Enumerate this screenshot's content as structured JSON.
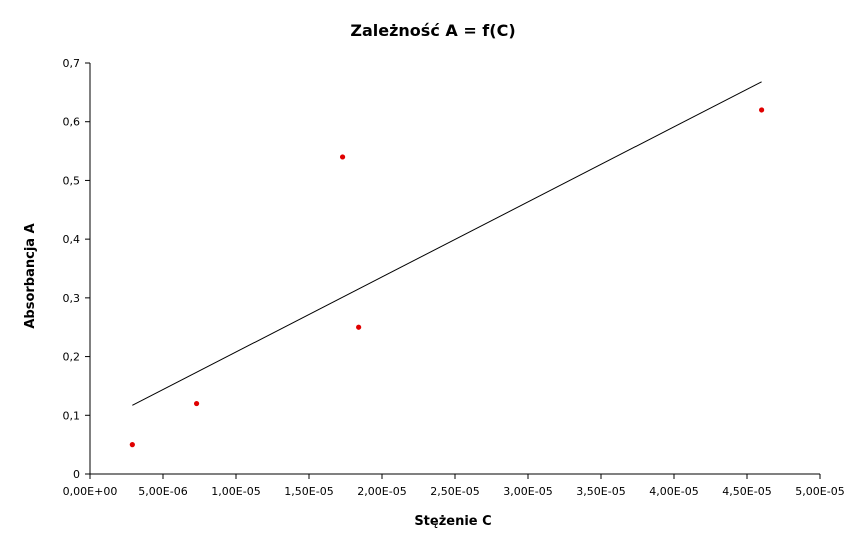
{
  "chart_data": {
    "type": "scatter",
    "title": "Zależność A = f(C)",
    "xlabel": "Stężenie C",
    "ylabel": "Absorbancja A",
    "xlim": [
      0,
      5e-05
    ],
    "ylim": [
      0,
      0.7
    ],
    "x_ticks": [
      0,
      5e-06,
      1e-05,
      1.5e-05,
      2e-05,
      2.5e-05,
      3e-05,
      3.5e-05,
      4e-05,
      4.5e-05,
      5e-05
    ],
    "x_tick_labels": [
      "0,00E+00",
      "5,00E-06",
      "1,00E-05",
      "1,50E-05",
      "2,00E-05",
      "2,50E-05",
      "3,00E-05",
      "3,50E-05",
      "4,00E-05",
      "4,50E-05",
      "5,00E-05"
    ],
    "y_ticks": [
      0,
      0.1,
      0.2,
      0.3,
      0.4,
      0.5,
      0.6,
      0.7
    ],
    "y_tick_labels": [
      "0",
      "0,1",
      "0,2",
      "0,3",
      "0,4",
      "0,5",
      "0,6",
      "0,7"
    ],
    "grid": false,
    "legend": "none",
    "series": [
      {
        "color": "#e00000",
        "points": [
          {
            "x": 2.9e-06,
            "y": 0.05
          },
          {
            "x": 7.3e-06,
            "y": 0.12
          },
          {
            "x": 1.73e-05,
            "y": 0.54
          },
          {
            "x": 1.84e-05,
            "y": 0.25
          },
          {
            "x": 4.6e-05,
            "y": 0.62
          }
        ]
      }
    ],
    "trendline": {
      "color": "#000000",
      "from": {
        "x": 2.9e-06,
        "y": 0.117
      },
      "to": {
        "x": 4.6e-05,
        "y": 0.668
      }
    }
  }
}
